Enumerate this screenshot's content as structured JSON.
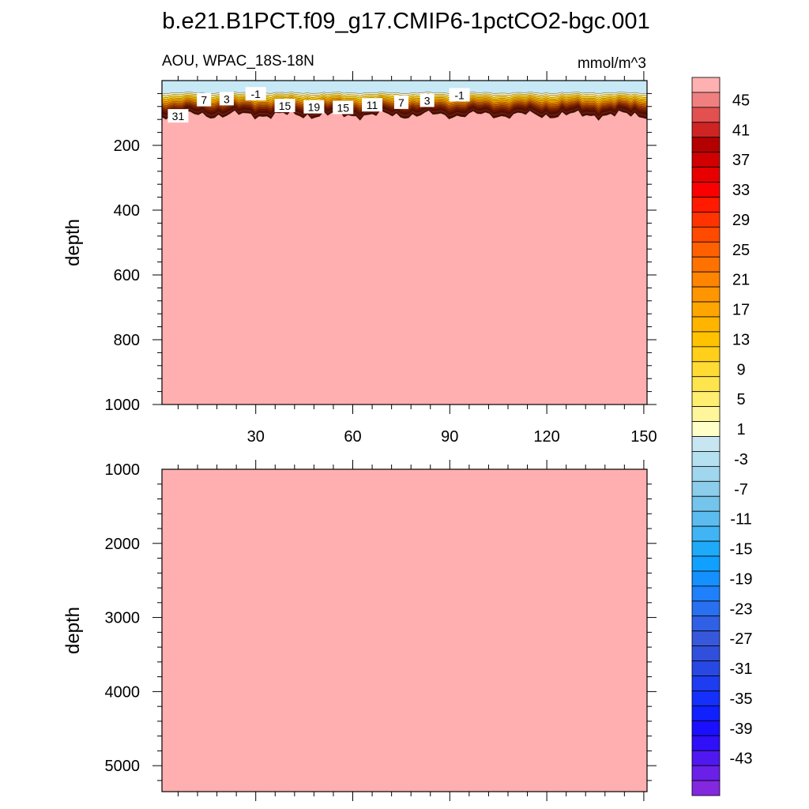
{
  "title": "b.e21.B1PCT.f09_g17.CMIP6-1pctCO2-bgc.001",
  "colors": {
    "fill_deep": "#ffafaf",
    "surface_negative": "#c7e8f5",
    "background": "#ffffff",
    "axis": "#000000"
  },
  "chart_data": [
    {
      "type": "heatmap",
      "subtitle_left": "AOU, WPAC_18S-18N",
      "subtitle_right": "mmol/m^3",
      "ylabel": "depth",
      "xlabel": "",
      "xlim": [
        1,
        151
      ],
      "ylim": [
        0,
        1000
      ],
      "y_reversed": true,
      "x_ticks": [
        "30",
        "60",
        "90",
        "120",
        "150"
      ],
      "y_ticks": [
        "200",
        "400",
        "600",
        "800",
        "1000"
      ],
      "contour_labels": [
        {
          "text": "7",
          "x": 14,
          "depth": 60
        },
        {
          "text": "3",
          "x": 21,
          "depth": 57
        },
        {
          "text": "-1",
          "x": 30,
          "depth": 42
        },
        {
          "text": "15",
          "x": 39,
          "depth": 78
        },
        {
          "text": "19",
          "x": 48,
          "depth": 82
        },
        {
          "text": "15",
          "x": 57,
          "depth": 84
        },
        {
          "text": "11",
          "x": 66,
          "depth": 76
        },
        {
          "text": "7",
          "x": 75,
          "depth": 68
        },
        {
          "text": "3",
          "x": 83,
          "depth": 62
        },
        {
          "text": "-1",
          "x": 93,
          "depth": 45
        },
        {
          "text": "31",
          "x": 6,
          "depth": 110
        }
      ],
      "description_levels": {
        "surface_value": -1,
        "deep_value": 47
      }
    },
    {
      "type": "heatmap",
      "ylabel": "depth",
      "xlim": [
        1,
        151
      ],
      "ylim": [
        1000,
        5350
      ],
      "y_reversed": true,
      "y_ticks": [
        "1000",
        "2000",
        "3000",
        "4000",
        "5000"
      ],
      "fill_value_above": 47
    }
  ],
  "colorbar": {
    "labels": [
      "45",
      "41",
      "37",
      "33",
      "29",
      "25",
      "21",
      "17",
      "13",
      "9",
      "5",
      "1",
      "-3",
      "-7",
      "-11",
      "-15",
      "-19",
      "-23",
      "-27",
      "-31",
      "-35",
      "-39",
      "-43"
    ],
    "levels_top_to_bottom": [
      ">47",
      "45",
      "43",
      "41",
      "39",
      "37",
      "35",
      "33",
      "31",
      "29",
      "27",
      "25",
      "23",
      "21",
      "19",
      "17",
      "15",
      "13",
      "11",
      "9",
      "7",
      "5",
      "3",
      "1",
      "-1",
      "-3",
      "-5",
      "-7",
      "-9",
      "-11",
      "-13",
      "-15",
      "-17",
      "-19",
      "-21",
      "-23",
      "-25",
      "-27",
      "-29",
      "-31",
      "-33",
      "-35",
      "-37",
      "-39",
      "-41",
      "-43",
      "-45",
      "<-45"
    ],
    "colors": [
      "#ffb0b0",
      "#f08080",
      "#e35050",
      "#cf2424",
      "#b40000",
      "#d00000",
      "#e80000",
      "#fa0000",
      "#ff1a00",
      "#ff3300",
      "#ff4a00",
      "#ff6000",
      "#ff7200",
      "#ff8400",
      "#ff9500",
      "#ffa500",
      "#ffb400",
      "#ffc200",
      "#ffcf1a",
      "#ffdb33",
      "#ffe54d",
      "#ffee70",
      "#fff59a",
      "#ffffc8",
      "#c8e6f2",
      "#b4e0f0",
      "#a0d6ee",
      "#8ccdec",
      "#74c4ec",
      "#5cbcf0",
      "#40b4f4",
      "#1eaaf8",
      "#10a0ff",
      "#1590ff",
      "#1e80fa",
      "#2870f0",
      "#3060e6",
      "#3858dc",
      "#3050dc",
      "#2848e4",
      "#1e3cf0",
      "#1430fa",
      "#1020ff",
      "#1a10ff",
      "#3010f8",
      "#5018f0",
      "#6a20e8",
      "#8428e0"
    ]
  }
}
